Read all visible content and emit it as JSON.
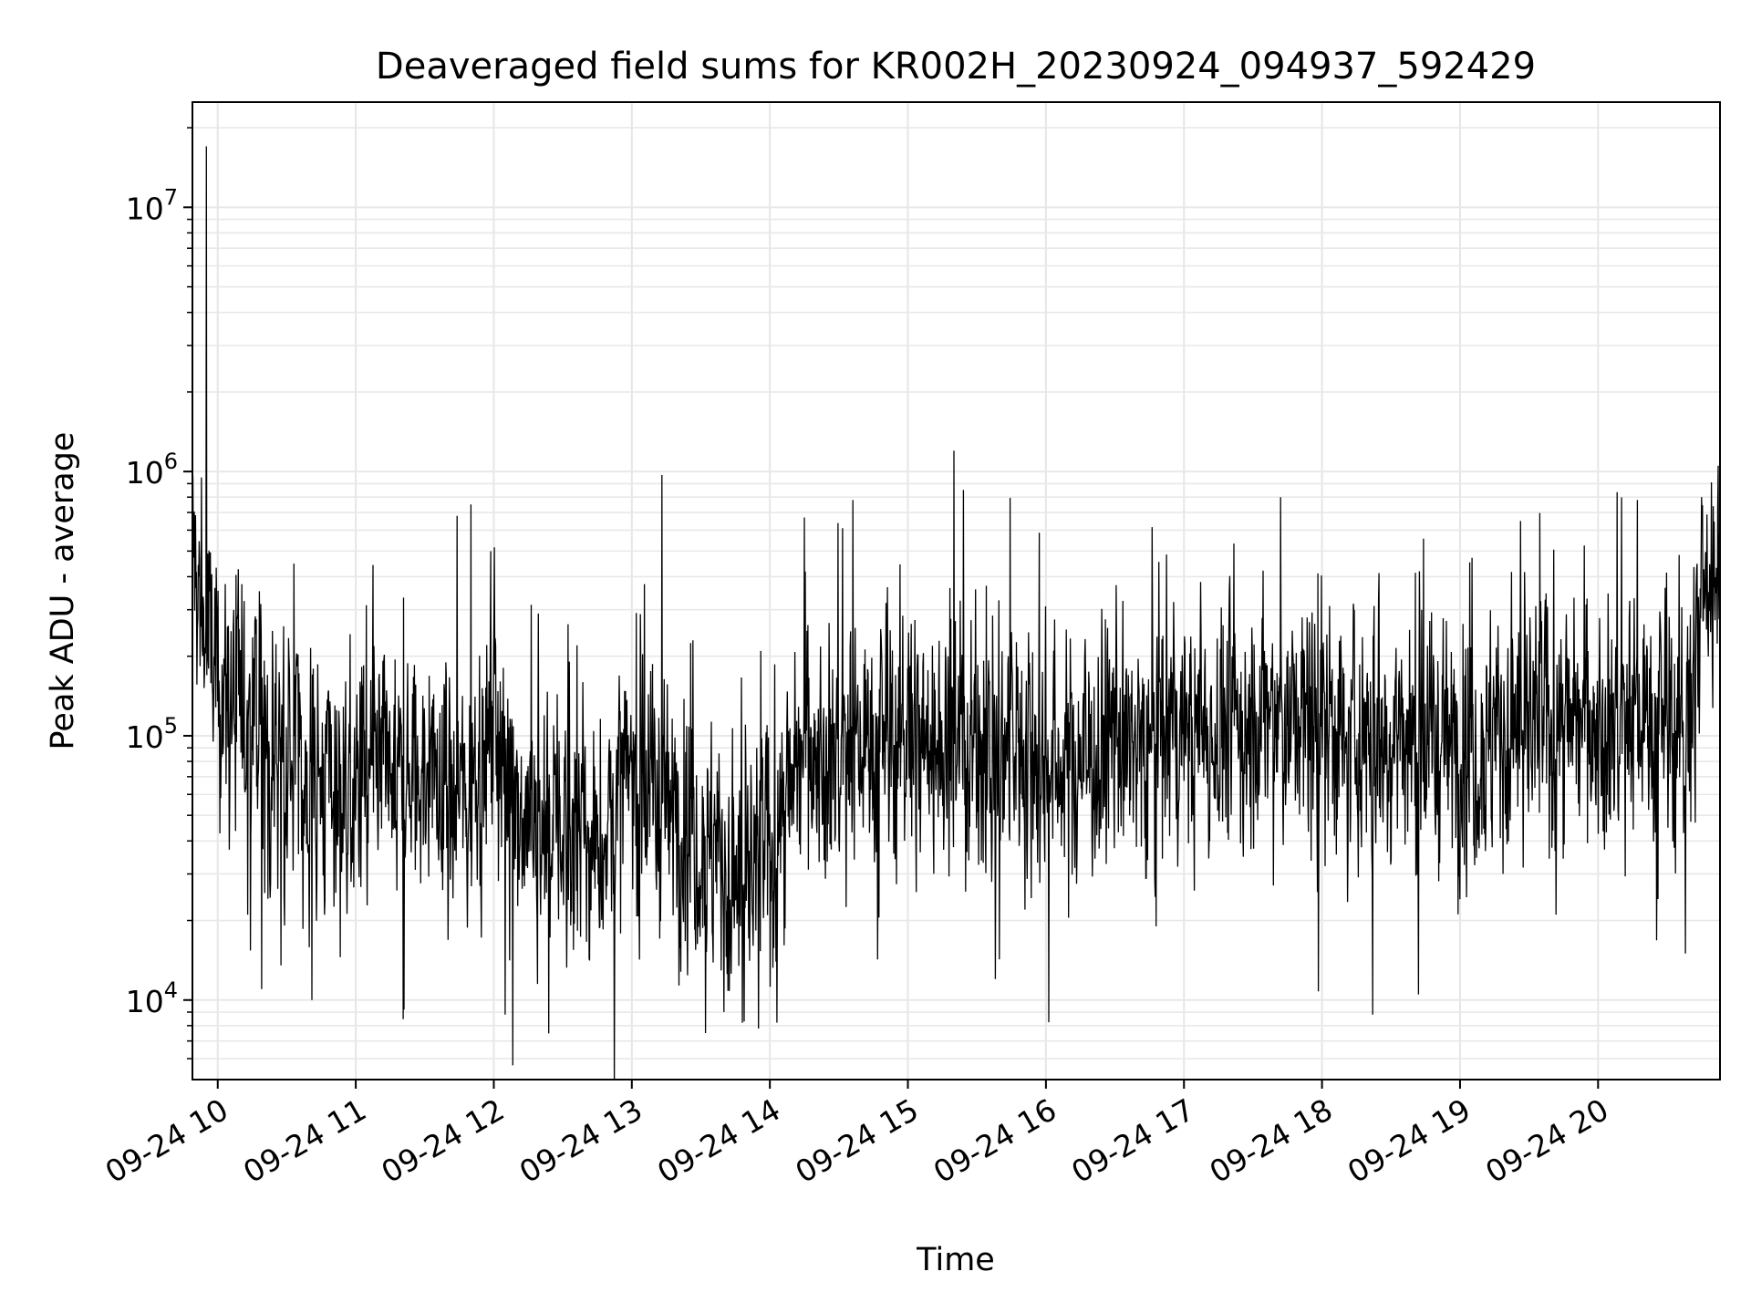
{
  "chart_data": {
    "type": "line",
    "title": "Deaveraged field sums for KR002H_20230924_094937_592429",
    "xlabel": "Time",
    "ylabel": "Peak ADU - average",
    "x_unit": "hour",
    "xlim": [
      "09-24 09:49",
      "09-24 20:53"
    ],
    "ylim": [
      5000,
      25000000
    ],
    "yscale": "log",
    "grid": true,
    "line_color": "#000000",
    "x_tick_labels": [
      "09-24 10",
      "09-24 11",
      "09-24 12",
      "09-24 13",
      "09-24 14",
      "09-24 15",
      "09-24 16",
      "09-24 17",
      "09-24 18",
      "09-24 19",
      "09-24 20"
    ],
    "x_tick_hours": [
      10,
      11,
      12,
      13,
      14,
      15,
      16,
      17,
      18,
      19,
      20
    ],
    "y_ticks": [
      {
        "value": 10000,
        "base": "10",
        "exp": "4"
      },
      {
        "value": 100000,
        "base": "10",
        "exp": "5"
      },
      {
        "value": 1000000,
        "base": "10",
        "exp": "6"
      },
      {
        "value": 10000000,
        "base": "10",
        "exp": "7"
      }
    ],
    "series": [
      {
        "values_description_envelope": "noisy time series sampled densely; envelope medians listed by time",
        "x": [
          "09-24 09:49",
          "09-24 09:52",
          "09-24 09:55",
          "09-24 10:00",
          "09-24 10:15",
          "09-24 10:30",
          "09-24 10:45",
          "09-24 11:00",
          "09-24 11:15",
          "09-24 11:30",
          "09-24 11:45",
          "09-24 12:00",
          "09-24 12:15",
          "09-24 12:30",
          "09-24 12:45",
          "09-24 13:00",
          "09-24 13:15",
          "09-24 13:30",
          "09-24 13:45",
          "09-24 14:00",
          "09-24 14:15",
          "09-24 14:30",
          "09-24 14:45",
          "09-24 15:00",
          "09-24 15:15",
          "09-24 15:30",
          "09-24 15:45",
          "09-24 16:00",
          "09-24 16:15",
          "09-24 16:30",
          "09-24 16:45",
          "09-24 17:00",
          "09-24 17:15",
          "09-24 17:30",
          "09-24 17:45",
          "09-24 18:00",
          "09-24 18:15",
          "09-24 18:30",
          "09-24 18:45",
          "09-24 19:00",
          "09-24 19:15",
          "09-24 19:30",
          "09-24 19:45",
          "09-24 20:00",
          "09-24 20:15",
          "09-24 20:30",
          "09-24 20:40",
          "09-24 20:45",
          "09-24 20:53"
        ],
        "values": [
          500000,
          300000,
          250000,
          150000,
          120000,
          80000,
          70000,
          60000,
          65000,
          70000,
          60000,
          100000,
          50000,
          45000,
          40000,
          70000,
          55000,
          45000,
          25000,
          35000,
          90000,
          90000,
          95000,
          100000,
          95000,
          90000,
          85000,
          80000,
          85000,
          90000,
          95000,
          100000,
          105000,
          110000,
          115000,
          105000,
          95000,
          100000,
          95000,
          95000,
          100000,
          105000,
          110000,
          115000,
          120000,
          110000,
          105000,
          350000,
          450000
        ]
      }
    ],
    "spikes": [
      {
        "x": "09-24 09:55",
        "value": 17000000
      },
      {
        "x": "09-24 09:53",
        "value": 950000
      },
      {
        "x": "09-24 11:44",
        "value": 680000
      },
      {
        "x": "09-24 11:50",
        "value": 750000
      },
      {
        "x": "09-24 13:13",
        "value": 970000
      },
      {
        "x": "09-24 14:15",
        "value": 670000
      },
      {
        "x": "09-24 14:36",
        "value": 780000
      },
      {
        "x": "09-24 15:20",
        "value": 1200000
      },
      {
        "x": "09-24 17:42",
        "value": 800000
      },
      {
        "x": "09-24 20:17",
        "value": 780000
      },
      {
        "x": "09-24 20:45",
        "value": 800000
      }
    ],
    "lows": [
      {
        "x": "09-24 09:58",
        "value": 95000
      },
      {
        "x": "09-24 10:19",
        "value": 11000
      },
      {
        "x": "09-24 10:41",
        "value": 10000
      },
      {
        "x": "09-24 12:05",
        "value": 8800
      },
      {
        "x": "09-24 13:32",
        "value": 7500
      },
      {
        "x": "09-24 13:48",
        "value": 8200
      },
      {
        "x": "09-24 13:55",
        "value": 7800
      },
      {
        "x": "09-24 15:38",
        "value": 12000
      },
      {
        "x": "09-24 18:22",
        "value": 8800
      },
      {
        "x": "09-24 18:42",
        "value": 10500
      },
      {
        "x": "09-24 20:38",
        "value": 15000
      }
    ]
  }
}
